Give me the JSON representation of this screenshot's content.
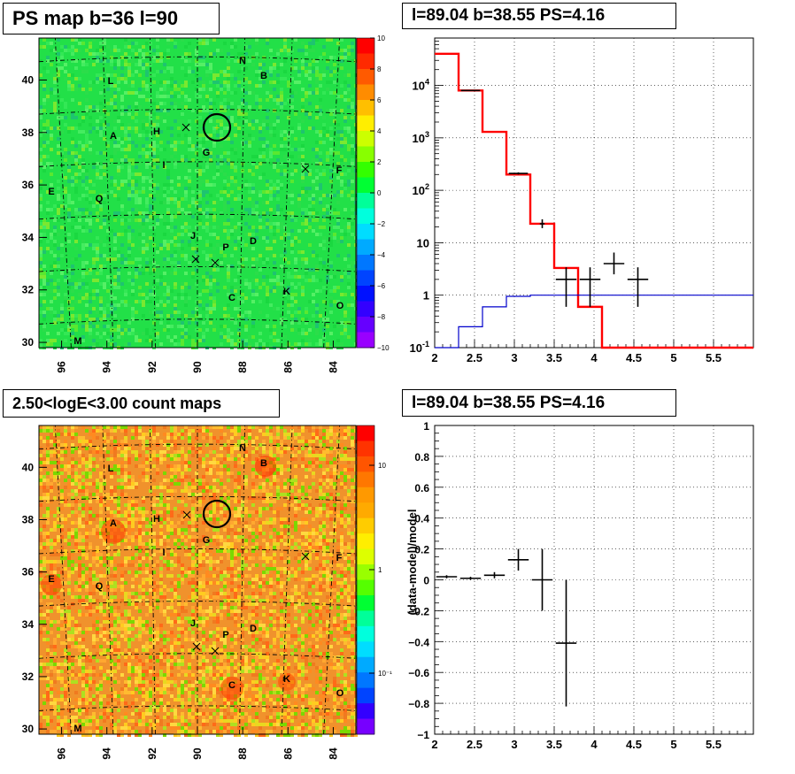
{
  "panels": {
    "map1": {
      "title": "PS map b=36 l=90"
    },
    "spec": {
      "title": "l=89.04 b=38.55 PS=4.16"
    },
    "map2": {
      "title": "2.50<logE<3.00 count maps"
    },
    "resid": {
      "title": "l=89.04 b=38.55 PS=4.16"
    }
  },
  "map_axes": {
    "x_ticks": [
      "96",
      "94",
      "92",
      "90",
      "88",
      "86",
      "84"
    ],
    "map1_y_ticks": [
      "30",
      "32",
      "34",
      "36",
      "38",
      "40"
    ],
    "map2_y_ticks": [
      "30",
      "32",
      "34",
      "36",
      "38",
      "40"
    ],
    "grid": true
  },
  "map1_colorbar": {
    "labels": [
      "10",
      "8",
      "6",
      "4",
      "2",
      "0",
      "−2",
      "−4",
      "−6",
      "−8",
      "−10"
    ],
    "colors": [
      "#ff0000",
      "#ff2a00",
      "#ff5a00",
      "#ff8c00",
      "#ffbf00",
      "#ffee00",
      "#ccff00",
      "#88ff00",
      "#33ff00",
      "#00ff33",
      "#00ff99",
      "#00ffdd",
      "#00ddff",
      "#00aaff",
      "#0077ff",
      "#0044ff",
      "#0011ff",
      "#3300ff",
      "#6600ff",
      "#9900ff"
    ]
  },
  "map2_colorbar": {
    "labels": [
      "10",
      "1",
      "10⁻¹"
    ],
    "colors": [
      "#ff0000",
      "#ff3300",
      "#ff5500",
      "#ff7700",
      "#ff9900",
      "#ffaa00",
      "#ffcc00",
      "#ffee00",
      "#ddff00",
      "#99ff00",
      "#55ff00",
      "#00ff33",
      "#00ff99",
      "#00ffdd",
      "#00ddff",
      "#00aaff",
      "#0077ff",
      "#0044ff",
      "#3300ff",
      "#7700ff"
    ]
  },
  "sources": [
    "N",
    "B",
    "L",
    "A",
    "H",
    "G",
    "I",
    "F",
    "E",
    "Q",
    "J",
    "D",
    "P",
    "K",
    "C",
    "O",
    "M"
  ],
  "colors": {
    "model": "#ff0000",
    "background": "#0000cc",
    "data": "#000000",
    "map1_bg": "#22e048",
    "map2_bg": "#f0922c",
    "marker": "#000000"
  },
  "chart_data": [
    {
      "type": "heatmap",
      "title": "PS map b=36 l=90",
      "xlabel": "",
      "ylabel": "",
      "xlim": [
        97,
        83
      ],
      "ylim": [
        29.8,
        41.6
      ],
      "zlim": [
        -10,
        10
      ],
      "x_ticks": [
        96,
        94,
        92,
        90,
        88,
        86,
        84
      ],
      "y_ticks": [
        30,
        32,
        34,
        36,
        38,
        40
      ],
      "marked_source": {
        "l": 89.04,
        "b": 38.55
      }
    },
    {
      "type": "line",
      "title": "l=89.04 b=38.55 PS=4.16",
      "xlabel": "",
      "ylabel": "",
      "xlim": [
        2,
        6
      ],
      "ylim": [
        0.1,
        80000
      ],
      "y_scale": "log",
      "x_ticks": [
        "2",
        "2.5",
        "3",
        "3.5",
        "4",
        "4.5",
        "5",
        "5.5"
      ],
      "y_ticks": [
        "10⁻¹",
        "1",
        "10",
        "10²",
        "10³",
        "10⁴"
      ],
      "grid": true,
      "series": [
        {
          "edges": [
            2,
            2.3,
            2.6,
            2.9,
            3.2,
            3.5,
            3.8,
            4.1,
            4.4,
            6
          ],
          "values": [
            40000,
            8000,
            1300,
            200,
            23,
            3.3,
            0.6,
            0.1,
            0.1
          ]
        },
        {
          "edges": [
            2,
            2.3,
            2.6,
            2.9,
            3.2,
            3.5,
            3.8,
            4.1,
            4.4,
            6
          ],
          "values": [
            0.1,
            0.25,
            0.6,
            0.95,
            1.0,
            1.0,
            1.0,
            1.0,
            1.0
          ]
        }
      ],
      "data_points": [
        {
          "x": 2.45,
          "y": 8000,
          "xerr": 0.12,
          "ylo": 7800,
          "yhi": 8200
        },
        {
          "x": 3.05,
          "y": 210,
          "xerr": 0.12,
          "ylo": 200,
          "yhi": 220
        },
        {
          "x": 3.35,
          "y": 23,
          "xerr": 0.03,
          "ylo": 19,
          "yhi": 28
        },
        {
          "x": 3.65,
          "y": 2,
          "xerr": 0.13,
          "ylo": 0.6,
          "yhi": 3.4
        },
        {
          "x": 3.95,
          "y": 2,
          "xerr": 0.13,
          "ylo": 0.6,
          "yhi": 3.4
        },
        {
          "x": 4.25,
          "y": 4,
          "xerr": 0.13,
          "ylo": 2.5,
          "yhi": 6.5
        },
        {
          "x": 4.55,
          "y": 2,
          "xerr": 0.13,
          "ylo": 0.6,
          "yhi": 3.4
        }
      ]
    },
    {
      "type": "heatmap",
      "title": "2.50<logE<3.00 count maps",
      "xlabel": "",
      "ylabel": "",
      "xlim": [
        97,
        83
      ],
      "ylim": [
        29.8,
        41.6
      ],
      "z_scale": "log",
      "x_ticks": [
        96,
        94,
        92,
        90,
        88,
        86,
        84
      ],
      "y_ticks": [
        30,
        32,
        34,
        36,
        38,
        40
      ],
      "marked_source": {
        "l": 89.04,
        "b": 38.55
      }
    },
    {
      "type": "scatter",
      "title": "l=89.04 b=38.55 PS=4.16",
      "xlabel": "",
      "ylabel": "(data-model)/model",
      "xlim": [
        2,
        6
      ],
      "ylim": [
        -1,
        1
      ],
      "x_ticks": [
        "2",
        "2.5",
        "3",
        "3.5",
        "4",
        "4.5",
        "5",
        "5.5"
      ],
      "y_ticks": [
        "−1",
        "−0.8",
        "−0.6",
        "−0.4",
        "−0.2",
        "0",
        "0.2",
        "0.4",
        "0.6",
        "0.8",
        "1"
      ],
      "grid": true,
      "data_points": [
        {
          "x": 2.15,
          "y": 0.02,
          "xerr": 0.13,
          "ylo": 0.01,
          "yhi": 0.03
        },
        {
          "x": 2.45,
          "y": 0.01,
          "xerr": 0.13,
          "ylo": 0.0,
          "yhi": 0.02
        },
        {
          "x": 2.75,
          "y": 0.03,
          "xerr": 0.13,
          "ylo": 0.01,
          "yhi": 0.05
        },
        {
          "x": 3.05,
          "y": 0.13,
          "xerr": 0.13,
          "ylo": 0.06,
          "yhi": 0.2
        },
        {
          "x": 3.35,
          "y": 0.0,
          "xerr": 0.13,
          "ylo": -0.2,
          "yhi": 0.2
        },
        {
          "x": 3.65,
          "y": -0.41,
          "xerr": 0.13,
          "ylo": -0.82,
          "yhi": 0.0
        }
      ]
    }
  ]
}
